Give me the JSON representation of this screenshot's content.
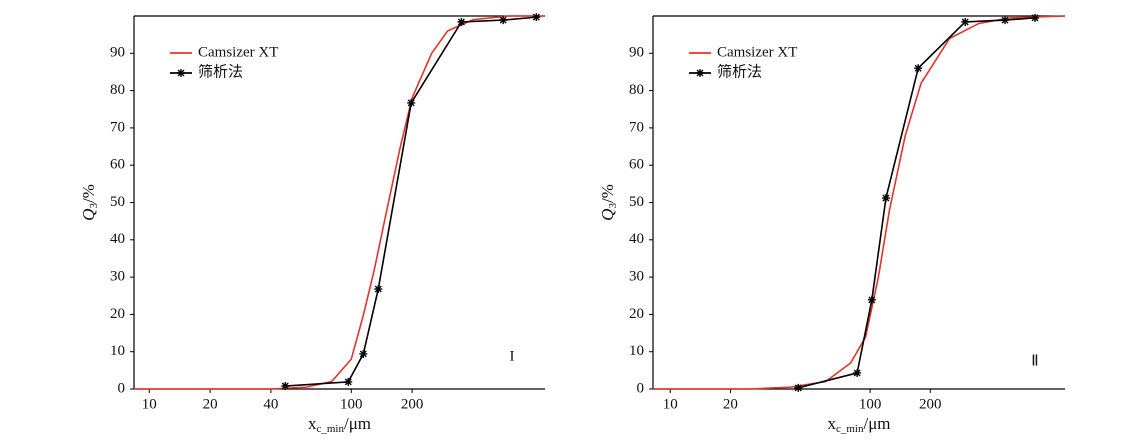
{
  "chart_data": [
    {
      "type": "line",
      "xscale": "log",
      "xlim": [
        8.4,
        910
      ],
      "ylim": [
        0,
        100
      ],
      "xticks": [
        10,
        20,
        40,
        100,
        200
      ],
      "yticks": [
        0,
        10,
        20,
        30,
        40,
        50,
        60,
        70,
        80,
        90
      ],
      "x_label": {
        "main": "x",
        "sub": "c_min",
        "unit": "/μm"
      },
      "y_label": {
        "main": "Q",
        "sub": "3",
        "unit": "/%"
      },
      "annotation": "I",
      "legend": "upper left",
      "series": [
        {
          "name": "Camsizer XT",
          "color": "#e0352b",
          "marker": "none",
          "x": [
            8.4,
            40,
            60,
            80,
            100,
            115,
            130,
            150,
            175,
            200,
            250,
            300,
            400,
            600,
            910
          ],
          "values": [
            0,
            0,
            0.5,
            2,
            8,
            20,
            32,
            48,
            65,
            78,
            90,
            96,
            99,
            100,
            100
          ]
        },
        {
          "name": "筛析法",
          "color": "#000000",
          "marker": "star",
          "x": [
            47.1,
            96.6,
            114.7,
            136,
            198,
            351,
            565,
            824
          ],
          "values": [
            0.8,
            1.9,
            9.4,
            26.8,
            76.7,
            98.4,
            98.9,
            99.7
          ]
        }
      ]
    },
    {
      "type": "line",
      "xscale": "log",
      "xlim": [
        8.2,
        944
      ],
      "ylim": [
        0,
        100
      ],
      "xticks": [
        10,
        20,
        100,
        200
      ],
      "yticks": [
        0,
        10,
        20,
        30,
        40,
        50,
        60,
        70,
        80,
        90
      ],
      "x_label": {
        "main": "x",
        "sub": "c_min",
        "unit": "/μm"
      },
      "y_label": {
        "main": "Q",
        "sub": "3",
        "unit": "/%"
      },
      "annotation": "Ⅱ",
      "legend": "upper left",
      "series": [
        {
          "name": "Camsizer XT",
          "color": "#e0352b",
          "marker": "none",
          "x": [
            8.2,
            25,
            40,
            60,
            80,
            95,
            110,
            125,
            150,
            180,
            250,
            350,
            500,
            944
          ],
          "values": [
            0,
            0,
            0.5,
            2,
            7,
            14,
            30,
            48,
            68,
            82,
            94,
            98,
            99.5,
            100
          ]
        },
        {
          "name": "筛析法",
          "color": "#000000",
          "marker": "star",
          "x": [
            43.7,
            86.1,
            102,
            120,
            174,
            299,
            473,
            668
          ],
          "values": [
            0.3,
            4.3,
            23.9,
            51.2,
            86,
            98.4,
            98.9,
            99.5
          ]
        }
      ]
    }
  ]
}
